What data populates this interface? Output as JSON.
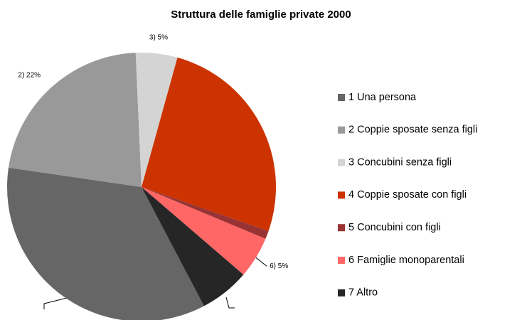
{
  "chart_data": {
    "type": "pie",
    "title": "Struttura delle famiglie private 2000",
    "categories": [
      "1 Una persona",
      "2 Coppie sposate senza figli",
      "3 Concubini senza figli",
      "4 Coppie sposate con figli",
      "5 Concubini con figli",
      "6 Famiglie monoparentali",
      "7 Altro"
    ],
    "values": [
      35,
      22,
      5,
      26,
      1,
      5,
      6
    ],
    "value_labels": [
      null,
      "2) 22%",
      "3) 5%",
      null,
      null,
      "6) 5%",
      null
    ],
    "colors": [
      "#666666",
      "#999999",
      "#d4d4d4",
      "#cc3300",
      "#993333",
      "#ff6666",
      "#262626"
    ],
    "legend": "right"
  }
}
